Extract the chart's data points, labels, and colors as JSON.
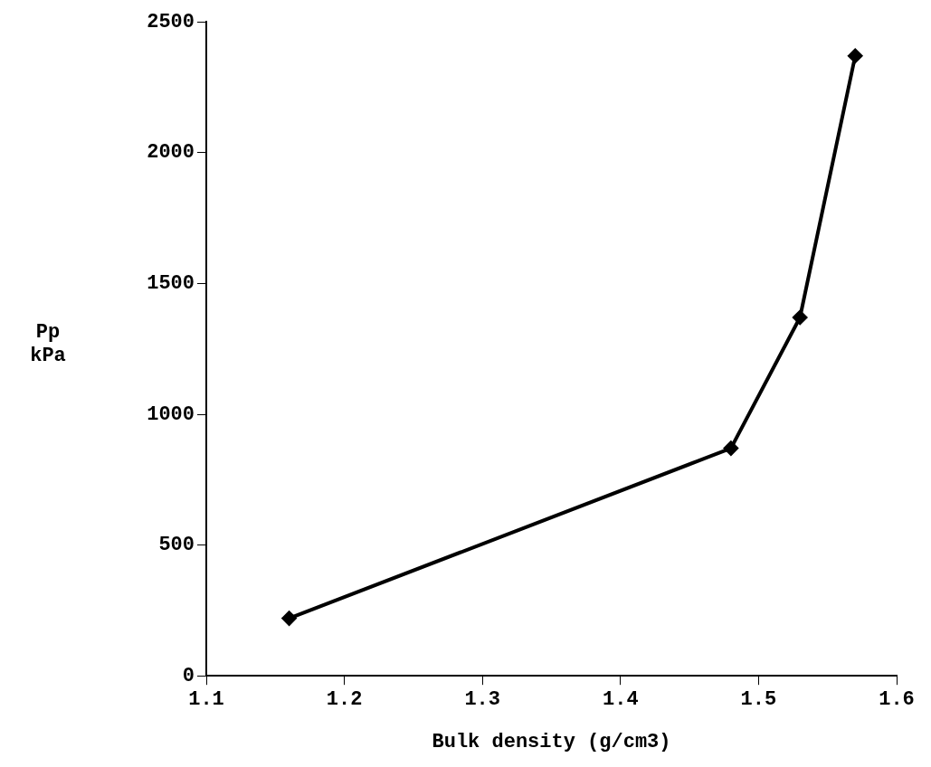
{
  "chart_data": {
    "type": "line",
    "xlabel": "Bulk density (g/cm3)",
    "ylabel": "Pp kPa",
    "x": [
      1.16,
      1.48,
      1.53,
      1.57
    ],
    "series": [
      {
        "color": "#000000",
        "values": [
          220,
          870,
          1370,
          2370
        ]
      }
    ],
    "xlim": [
      1.1,
      1.6
    ],
    "xticks": [
      1.1,
      1.2,
      1.3,
      1.4,
      1.5,
      1.6
    ],
    "ylim": [
      0,
      2500
    ],
    "yticks": [
      0,
      500,
      1000,
      1500,
      2000,
      2500
    ],
    "grid": false,
    "legend": false,
    "marker": "diamond",
    "line_style": "solid"
  }
}
